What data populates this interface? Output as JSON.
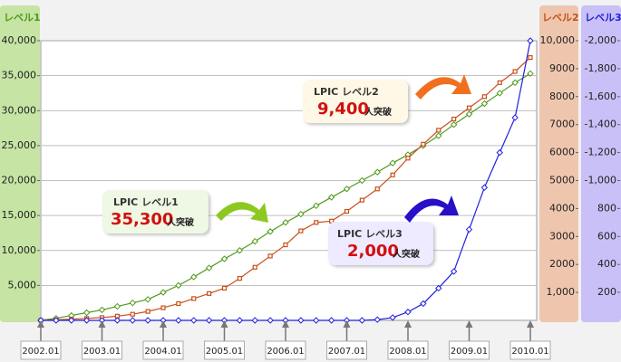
{
  "chart_data": {
    "type": "line",
    "x": [
      "2002.01",
      "2002.04",
      "2002.07",
      "2002.10",
      "2003.01",
      "2003.04",
      "2003.07",
      "2003.10",
      "2004.01",
      "2004.04",
      "2004.07",
      "2004.10",
      "2005.01",
      "2005.04",
      "2005.07",
      "2005.10",
      "2006.01",
      "2006.04",
      "2006.07",
      "2006.10",
      "2007.01",
      "2007.04",
      "2007.07",
      "2007.10",
      "2008.01",
      "2008.04",
      "2008.07",
      "2008.10",
      "2009.01",
      "2009.04",
      "2009.07",
      "2009.10",
      "2010.01"
    ],
    "xlim": [
      "2002.01",
      "2010.01"
    ],
    "xticks": [
      "2002.01",
      "2003.01",
      "2004.01",
      "2005.01",
      "2006.01",
      "2007.01",
      "2008.01",
      "2009.01",
      "2010.01"
    ],
    "ylim": [
      0,
      40000
    ],
    "yticks": [
      {
        "value": 5000,
        "label": "5,000"
      },
      {
        "value": 10000,
        "label": "10,000"
      },
      {
        "value": 15000,
        "label": "15,000"
      },
      {
        "value": 20000,
        "label": "20,000"
      },
      {
        "value": 25000,
        "label": "25,000"
      },
      {
        "value": 30000,
        "label": "30,000"
      },
      {
        "value": 35000,
        "label": "35,000"
      },
      {
        "value": 40000,
        "label": "40,000"
      }
    ],
    "y_label": "レベル1",
    "y2lim": [
      0,
      10000
    ],
    "y2ticks": [
      {
        "value": 1000,
        "label": "1,000"
      },
      2000,
      3000,
      4000,
      5000,
      6000,
      7000,
      8000,
      9000,
      {
        "value": 10000,
        "label": "10,000"
      }
    ],
    "y2_label": "レベル2",
    "y3lim": [
      0,
      2000
    ],
    "y3ticks": [
      200,
      400,
      600,
      800,
      {
        "value": 1000,
        "label": "-1,000"
      },
      {
        "value": 1200,
        "label": "-1,200"
      },
      {
        "value": 1400,
        "label": "-1,400"
      },
      {
        "value": 1600,
        "label": "-1,600"
      },
      {
        "value": 1800,
        "label": "-1,800"
      },
      {
        "value": 2000,
        "label": "-2,000"
      }
    ],
    "y3_label": "レベル3",
    "grid": true,
    "series": [
      {
        "name": "LPIC レベル1",
        "color": "#4f9a1a",
        "axis": "y",
        "marker": "diamond",
        "values": [
          0,
          300,
          700,
          1100,
          1500,
          2000,
          2500,
          3000,
          4000,
          5000,
          6200,
          7500,
          8800,
          10000,
          11300,
          12700,
          14000,
          15200,
          16400,
          17600,
          18800,
          20000,
          21200,
          22500,
          23700,
          25000,
          26400,
          28000,
          29500,
          31000,
          32500,
          34000,
          35300
        ]
      },
      {
        "name": "LPIC レベル2",
        "color": "#c8501a",
        "axis": "y2",
        "marker": "square",
        "values": [
          0,
          20,
          40,
          70,
          100,
          150,
          220,
          320,
          450,
          600,
          780,
          960,
          1150,
          1500,
          1900,
          2300,
          2700,
          3200,
          3500,
          3550,
          3900,
          4300,
          4700,
          5200,
          5800,
          6300,
          6800,
          7200,
          7600,
          8000,
          8500,
          8900,
          9400
        ]
      },
      {
        "name": "LPIC レベル3",
        "color": "#2020e0",
        "axis": "y3",
        "marker": "diamond",
        "values": [
          0,
          0,
          0,
          0,
          0,
          0,
          0,
          0,
          0,
          0,
          0,
          0,
          0,
          0,
          0,
          0,
          0,
          0,
          0,
          0,
          0,
          0,
          5,
          20,
          60,
          120,
          230,
          350,
          650,
          950,
          1200,
          1450,
          2000
        ]
      }
    ],
    "annotations": [
      {
        "title": "LPIC レベル1",
        "count": "35,300",
        "suffix": "人突破"
      },
      {
        "title": "LPIC レベル2",
        "count": "9,400",
        "suffix": "人突破"
      },
      {
        "title": "LPIC レベル3",
        "count": "2,000",
        "suffix": "人突破"
      }
    ]
  }
}
